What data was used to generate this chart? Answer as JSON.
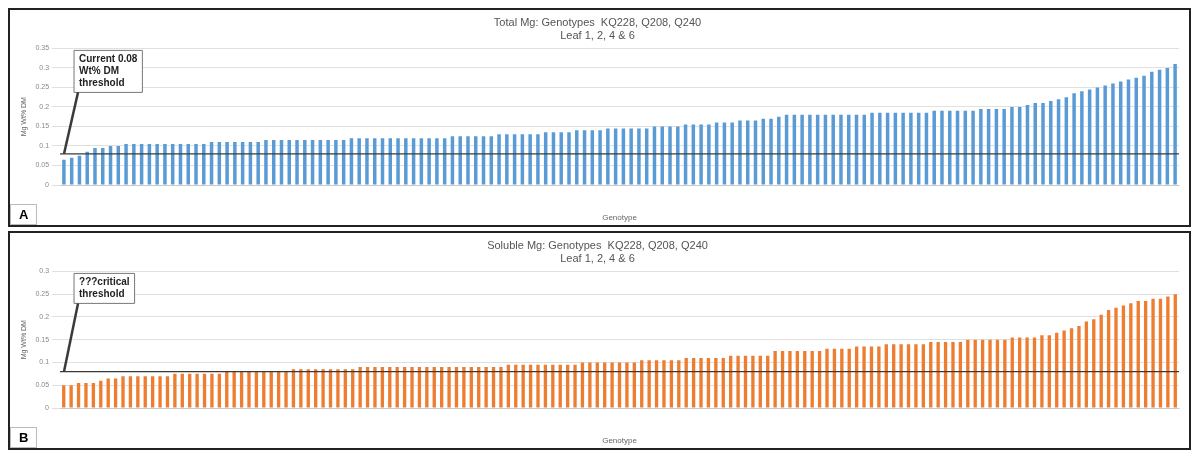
{
  "chart_data": [
    {
      "type": "bar",
      "title": "Total Mg: Genotypes  KQ228, Q208, Q240",
      "subtitle": "Leaf 1, 2, 4 & 6",
      "xlabel": "Genotype",
      "ylabel": "Mg Wt% DM",
      "annotations": [
        "A"
      ],
      "categories": [
        null,
        null,
        null,
        null,
        null,
        null,
        null,
        null,
        null,
        null,
        null,
        null,
        null,
        null,
        null,
        null,
        null,
        null,
        null,
        null,
        null,
        null,
        null,
        null,
        null,
        null,
        null,
        null,
        null,
        null,
        null,
        null,
        null,
        null,
        null,
        null,
        null,
        null,
        null,
        null,
        null,
        null,
        null,
        null,
        null,
        null,
        null,
        null,
        null,
        null,
        null,
        null,
        null,
        null,
        null,
        null,
        null,
        null,
        null,
        null,
        null,
        null,
        null,
        null,
        null,
        null,
        null,
        null,
        null,
        null,
        null,
        null,
        null,
        null,
        null,
        null,
        null,
        null,
        null,
        null,
        null,
        null,
        null,
        null,
        null,
        null,
        null,
        null,
        null,
        null,
        null,
        null,
        null,
        null,
        null,
        null,
        null,
        null,
        null,
        null,
        null,
        null,
        null,
        null,
        null,
        null,
        null,
        null,
        null,
        null,
        null,
        null,
        null,
        null,
        null,
        null,
        null,
        null,
        null,
        null,
        null,
        null,
        null,
        null,
        null,
        null,
        null,
        null,
        null,
        null,
        null,
        null,
        null,
        null,
        null,
        null,
        null,
        null,
        null,
        null,
        null,
        null,
        null,
        null
      ],
      "values": [
        0.065,
        0.07,
        0.075,
        0.085,
        0.095,
        0.095,
        0.1,
        0.1,
        0.105,
        0.105,
        0.105,
        0.105,
        0.105,
        0.105,
        0.105,
        0.105,
        0.105,
        0.105,
        0.105,
        0.11,
        0.11,
        0.11,
        0.11,
        0.11,
        0.11,
        0.11,
        0.115,
        0.115,
        0.115,
        0.115,
        0.115,
        0.115,
        0.115,
        0.115,
        0.115,
        0.115,
        0.115,
        0.12,
        0.12,
        0.12,
        0.12,
        0.12,
        0.12,
        0.12,
        0.12,
        0.12,
        0.12,
        0.12,
        0.12,
        0.12,
        0.125,
        0.125,
        0.125,
        0.125,
        0.125,
        0.125,
        0.13,
        0.13,
        0.13,
        0.13,
        0.13,
        0.13,
        0.135,
        0.135,
        0.135,
        0.135,
        0.14,
        0.14,
        0.14,
        0.14,
        0.145,
        0.145,
        0.145,
        0.145,
        0.145,
        0.145,
        0.15,
        0.15,
        0.15,
        0.15,
        0.155,
        0.155,
        0.155,
        0.155,
        0.16,
        0.16,
        0.16,
        0.165,
        0.165,
        0.165,
        0.17,
        0.17,
        0.175,
        0.18,
        0.18,
        0.18,
        0.18,
        0.18,
        0.18,
        0.18,
        0.18,
        0.18,
        0.18,
        0.18,
        0.185,
        0.185,
        0.185,
        0.185,
        0.185,
        0.185,
        0.185,
        0.185,
        0.19,
        0.19,
        0.19,
        0.19,
        0.19,
        0.19,
        0.195,
        0.195,
        0.195,
        0.195,
        0.2,
        0.2,
        0.205,
        0.21,
        0.21,
        0.215,
        0.22,
        0.225,
        0.235,
        0.24,
        0.245,
        0.25,
        0.255,
        0.26,
        0.265,
        0.27,
        0.275,
        0.28,
        0.29,
        0.295,
        0.3,
        0.31
      ],
      "color": "#5b9bd5",
      "ylim": [
        0,
        0.35
      ],
      "yticks": [
        0,
        0.05,
        0.1,
        0.15,
        0.2,
        0.25,
        0.3,
        0.35
      ],
      "grid": "y",
      "legend": false,
      "ref_lines": [
        {
          "axis": "y",
          "value": 0.08,
          "label": "Current 0.08 Wt% DM threshold",
          "color": "#3a3a3a"
        }
      ]
    },
    {
      "type": "bar",
      "title": "Soluble Mg: Genotypes  KQ228, Q208, Q240",
      "subtitle": "Leaf 1, 2, 4 & 6",
      "xlabel": "Genotype",
      "ylabel": "Mg Wt% DM",
      "annotations": [
        "B"
      ],
      "categories": [
        null,
        null,
        null,
        null,
        null,
        null,
        null,
        null,
        null,
        null,
        null,
        null,
        null,
        null,
        null,
        null,
        null,
        null,
        null,
        null,
        null,
        null,
        null,
        null,
        null,
        null,
        null,
        null,
        null,
        null,
        null,
        null,
        null,
        null,
        null,
        null,
        null,
        null,
        null,
        null,
        null,
        null,
        null,
        null,
        null,
        null,
        null,
        null,
        null,
        null,
        null,
        null,
        null,
        null,
        null,
        null,
        null,
        null,
        null,
        null,
        null,
        null,
        null,
        null,
        null,
        null,
        null,
        null,
        null,
        null,
        null,
        null,
        null,
        null,
        null,
        null,
        null,
        null,
        null,
        null,
        null,
        null,
        null,
        null,
        null,
        null,
        null,
        null,
        null,
        null,
        null,
        null,
        null,
        null,
        null,
        null,
        null,
        null,
        null,
        null,
        null,
        null,
        null,
        null,
        null,
        null,
        null,
        null,
        null,
        null,
        null,
        null,
        null,
        null,
        null,
        null,
        null,
        null,
        null,
        null,
        null,
        null,
        null,
        null,
        null,
        null,
        null,
        null,
        null,
        null,
        null,
        null,
        null,
        null,
        null,
        null,
        null,
        null,
        null,
        null,
        null,
        null,
        null,
        null,
        null,
        null,
        null,
        null,
        null,
        null,
        null
      ],
      "values": [
        0.05,
        0.05,
        0.055,
        0.055,
        0.055,
        0.06,
        0.065,
        0.065,
        0.07,
        0.07,
        0.07,
        0.07,
        0.07,
        0.07,
        0.07,
        0.075,
        0.075,
        0.075,
        0.075,
        0.075,
        0.075,
        0.075,
        0.08,
        0.08,
        0.08,
        0.08,
        0.08,
        0.08,
        0.08,
        0.08,
        0.08,
        0.085,
        0.085,
        0.085,
        0.085,
        0.085,
        0.085,
        0.085,
        0.085,
        0.085,
        0.09,
        0.09,
        0.09,
        0.09,
        0.09,
        0.09,
        0.09,
        0.09,
        0.09,
        0.09,
        0.09,
        0.09,
        0.09,
        0.09,
        0.09,
        0.09,
        0.09,
        0.09,
        0.09,
        0.09,
        0.095,
        0.095,
        0.095,
        0.095,
        0.095,
        0.095,
        0.095,
        0.095,
        0.095,
        0.095,
        0.1,
        0.1,
        0.1,
        0.1,
        0.1,
        0.1,
        0.1,
        0.1,
        0.105,
        0.105,
        0.105,
        0.105,
        0.105,
        0.105,
        0.11,
        0.11,
        0.11,
        0.11,
        0.11,
        0.11,
        0.115,
        0.115,
        0.115,
        0.115,
        0.115,
        0.115,
        0.125,
        0.125,
        0.125,
        0.125,
        0.125,
        0.125,
        0.125,
        0.13,
        0.13,
        0.13,
        0.13,
        0.135,
        0.135,
        0.135,
        0.135,
        0.14,
        0.14,
        0.14,
        0.14,
        0.14,
        0.14,
        0.145,
        0.145,
        0.145,
        0.145,
        0.145,
        0.15,
        0.15,
        0.15,
        0.15,
        0.15,
        0.15,
        0.155,
        0.155,
        0.155,
        0.155,
        0.16,
        0.16,
        0.165,
        0.17,
        0.175,
        0.18,
        0.19,
        0.195,
        0.205,
        0.215,
        0.22,
        0.225,
        0.23,
        0.235,
        0.235,
        0.24,
        0.24,
        0.245,
        0.25
      ],
      "color": "#ed7d31",
      "ylim": [
        0,
        0.3
      ],
      "yticks": [
        0,
        0.05,
        0.1,
        0.15,
        0.2,
        0.25,
        0.3
      ],
      "grid": "y",
      "legend": false,
      "ref_lines": [
        {
          "axis": "y",
          "value": 0.08,
          "label": "???critical threshold",
          "color": "#3a3a3a"
        }
      ]
    }
  ]
}
